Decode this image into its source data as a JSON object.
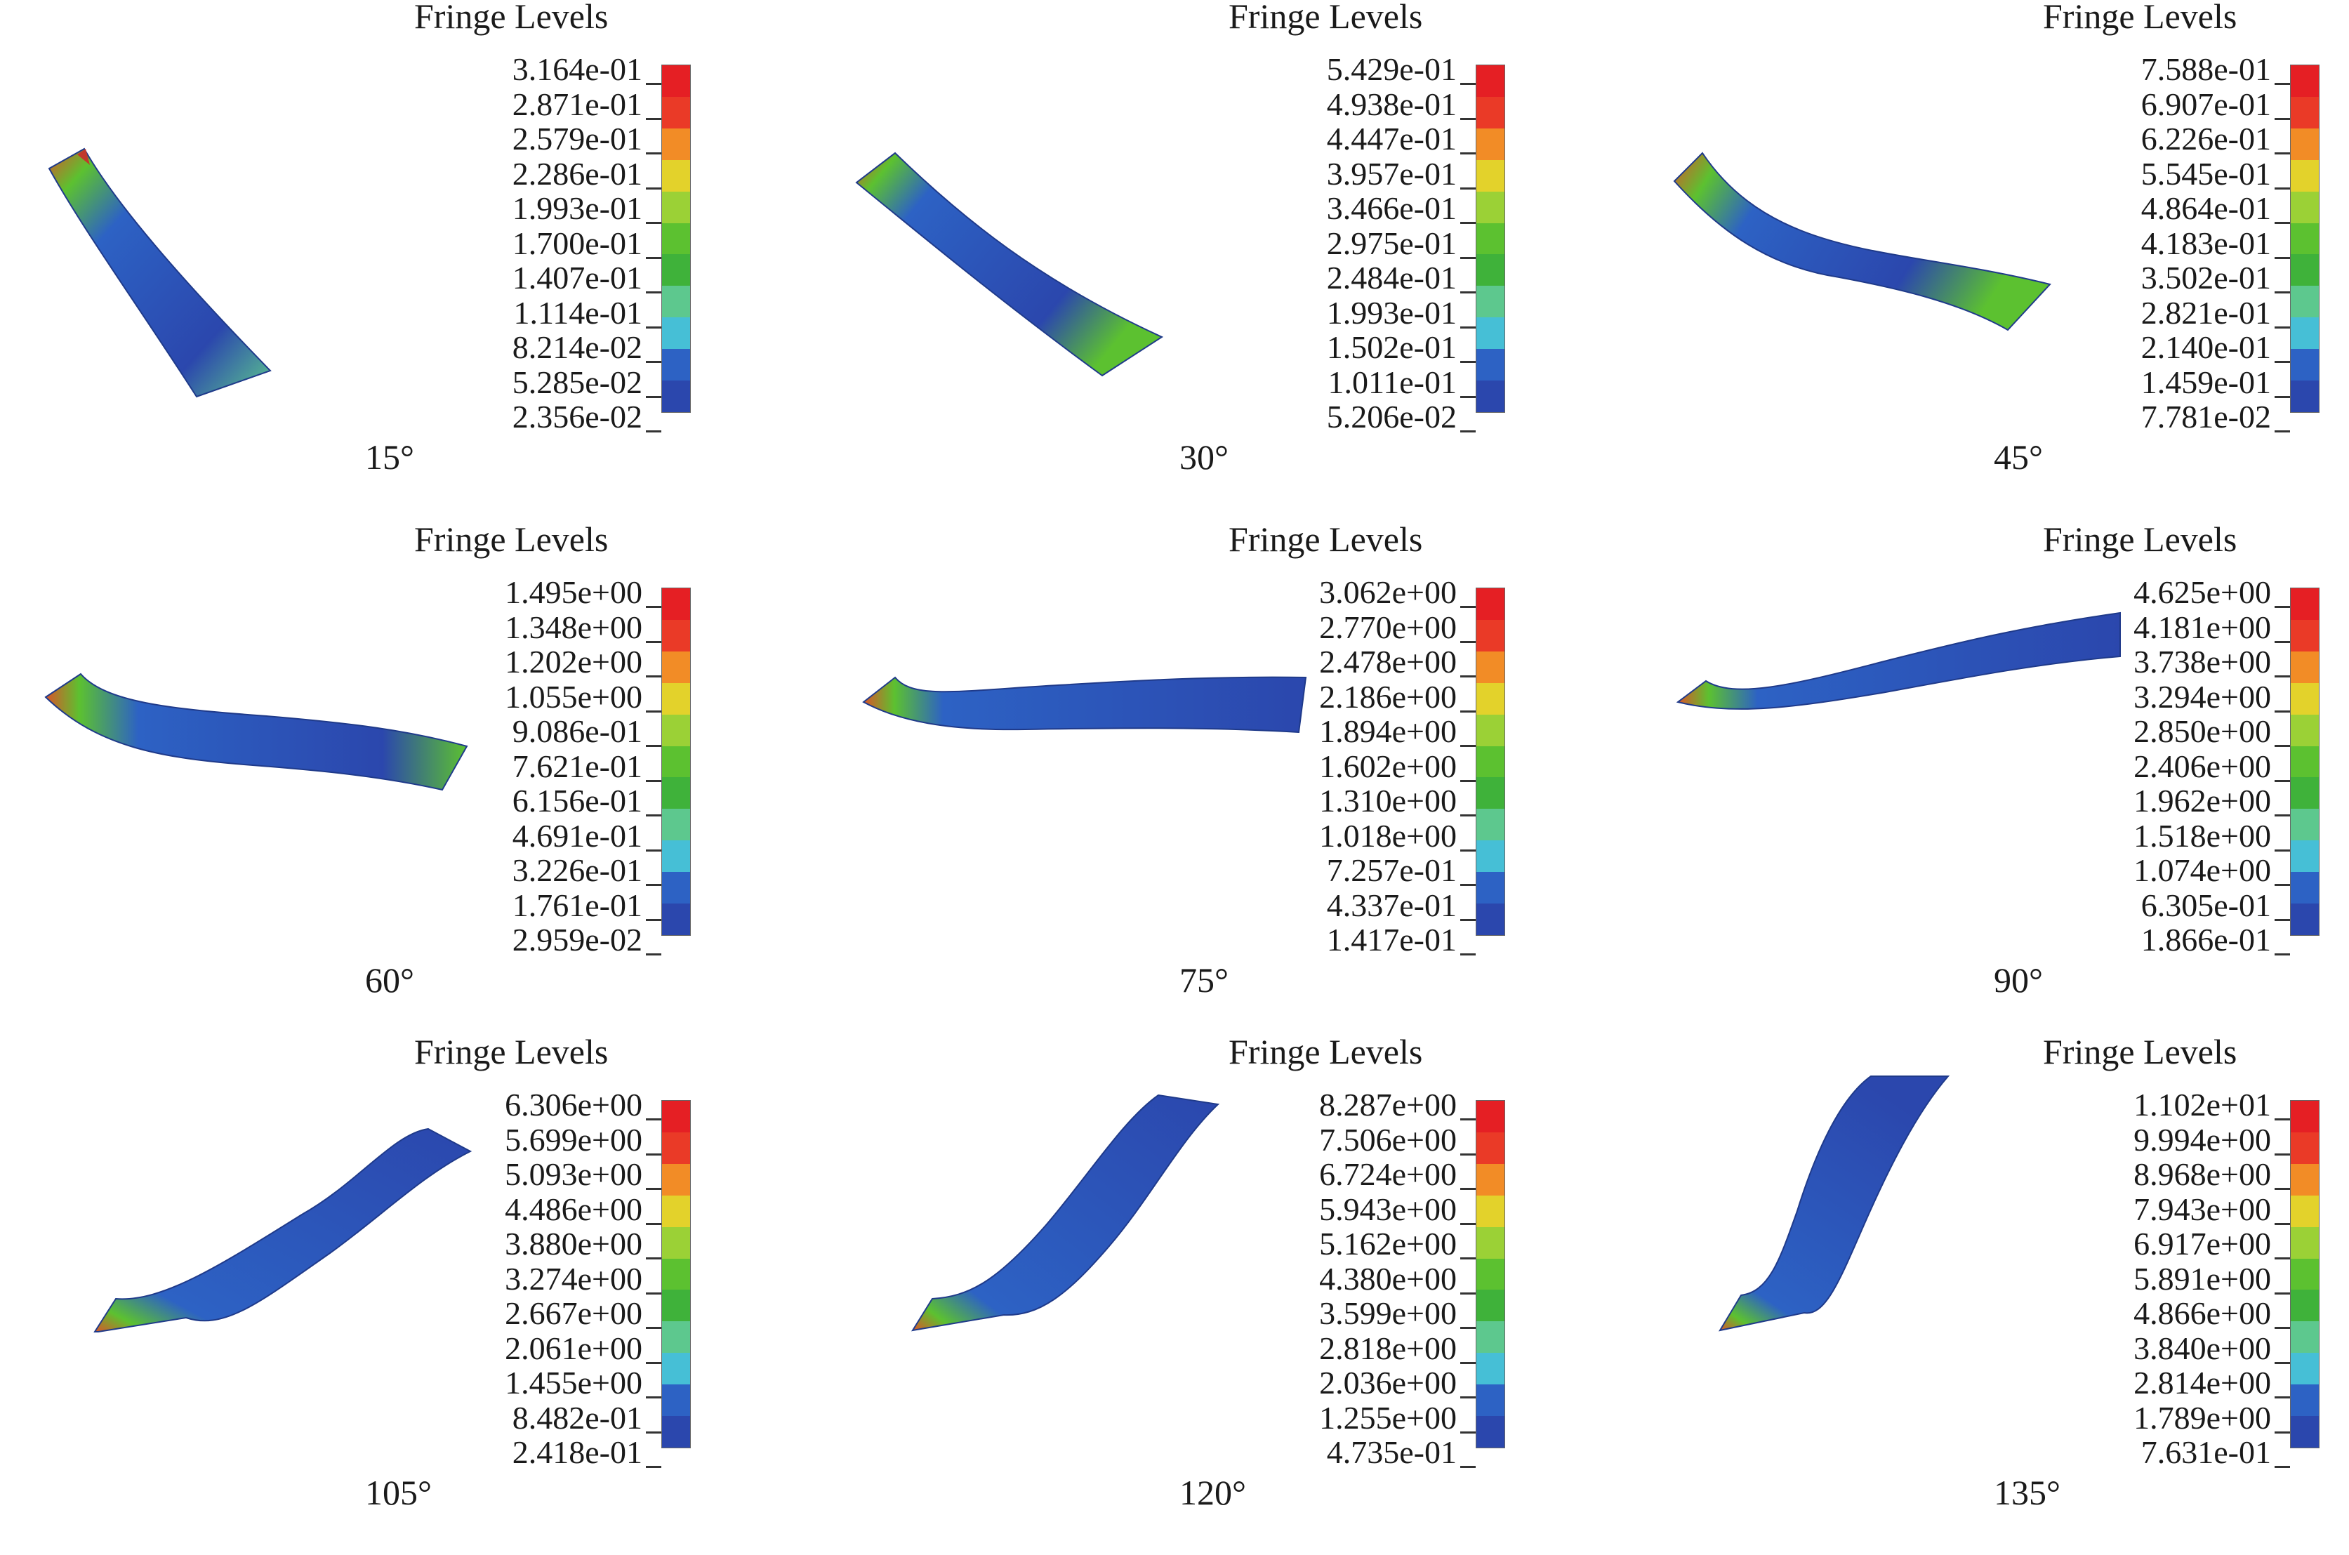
{
  "colorscale": [
    "#2b47ad",
    "#2d62c4",
    "#46bfd6",
    "#5dc88e",
    "#3fb23a",
    "#5cc130",
    "#9bd136",
    "#e3d22b",
    "#f28c26",
    "#ea3a27",
    "#e51f24"
  ],
  "panels": [
    {
      "title": "Fringe Levels",
      "angle": "15°",
      "levels": [
        "3.164e-01",
        "2.871e-01",
        "2.579e-01",
        "2.286e-01",
        "1.993e-01",
        "1.700e-01",
        "1.407e-01",
        "1.114e-01",
        "8.214e-02",
        "5.285e-02",
        "2.356e-02"
      ]
    },
    {
      "title": "Fringe Levels",
      "angle": "30°",
      "levels": [
        "5.429e-01",
        "4.938e-01",
        "4.447e-01",
        "3.957e-01",
        "3.466e-01",
        "2.975e-01",
        "2.484e-01",
        "1.993e-01",
        "1.502e-01",
        "1.011e-01",
        "5.206e-02"
      ]
    },
    {
      "title": "Fringe Levels",
      "angle": "45°",
      "levels": [
        "7.588e-01",
        "6.907e-01",
        "6.226e-01",
        "5.545e-01",
        "4.864e-01",
        "4.183e-01",
        "3.502e-01",
        "2.821e-01",
        "2.140e-01",
        "1.459e-01",
        "7.781e-02"
      ]
    },
    {
      "title": "Fringe Levels",
      "angle": "60°",
      "levels": [
        "1.495e+00",
        "1.348e+00",
        "1.202e+00",
        "1.055e+00",
        "9.086e-01",
        "7.621e-01",
        "6.156e-01",
        "4.691e-01",
        "3.226e-01",
        "1.761e-01",
        "2.959e-02"
      ]
    },
    {
      "title": "Fringe Levels",
      "angle": "75°",
      "levels": [
        "3.062e+00",
        "2.770e+00",
        "2.478e+00",
        "2.186e+00",
        "1.894e+00",
        "1.602e+00",
        "1.310e+00",
        "1.018e+00",
        "7.257e-01",
        "4.337e-01",
        "1.417e-01"
      ]
    },
    {
      "title": "Fringe Levels",
      "angle": "90°",
      "levels": [
        "4.625e+00",
        "4.181e+00",
        "3.738e+00",
        "3.294e+00",
        "2.850e+00",
        "2.406e+00",
        "1.962e+00",
        "1.518e+00",
        "1.074e+00",
        "6.305e-01",
        "1.866e-01"
      ]
    },
    {
      "title": "Fringe Levels",
      "angle": "105°",
      "levels": [
        "6.306e+00",
        "5.699e+00",
        "5.093e+00",
        "4.486e+00",
        "3.880e+00",
        "3.274e+00",
        "2.667e+00",
        "2.061e+00",
        "1.455e+00",
        "8.482e-01",
        "2.418e-01"
      ]
    },
    {
      "title": "Fringe Levels",
      "angle": "120°",
      "levels": [
        "8.287e+00",
        "7.506e+00",
        "6.724e+00",
        "5.943e+00",
        "5.162e+00",
        "4.380e+00",
        "3.599e+00",
        "2.818e+00",
        "2.036e+00",
        "1.255e+00",
        "4.735e-01"
      ]
    },
    {
      "title": "Fringe Levels",
      "angle": "135°",
      "levels": [
        "1.102e+01",
        "9.994e+00",
        "8.968e+00",
        "7.943e+00",
        "6.917e+00",
        "5.891e+00",
        "4.866e+00",
        "3.840e+00",
        "2.814e+00",
        "1.789e+00",
        "7.631e-01"
      ]
    }
  ]
}
